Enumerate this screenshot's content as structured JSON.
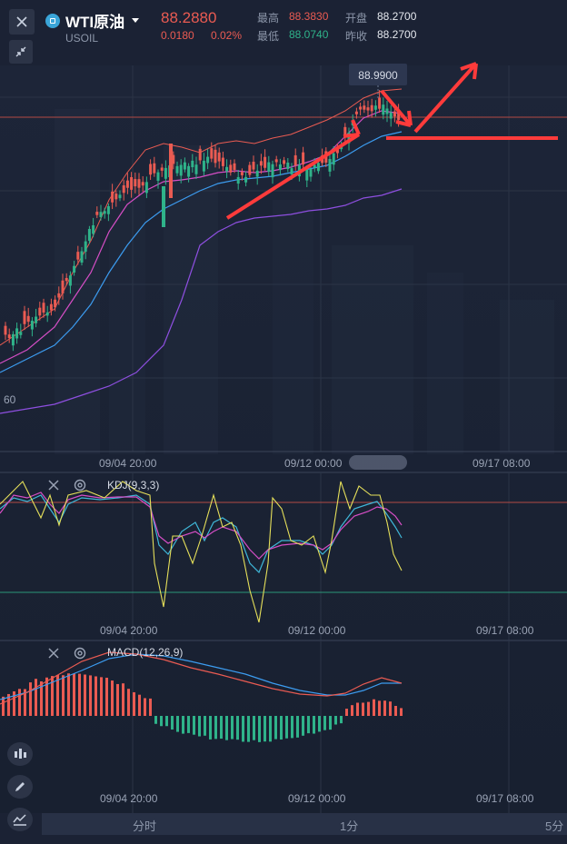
{
  "header": {
    "symbol_name": "WTI原油",
    "symbol_code": "USOIL",
    "price": "88.2880",
    "change": "0.0180",
    "change_pct": "0.02%",
    "high_label": "最高",
    "high_value": "88.3830",
    "open_label": "开盘",
    "open_value": "88.2700",
    "low_label": "最低",
    "low_value": "88.0740",
    "prev_close_label": "昨收",
    "prev_close_value": "88.2700"
  },
  "main_chart": {
    "price_tag": "88.9900",
    "left_axis_fragment": "60",
    "x_labels": [
      "09/04 20:00",
      "09/12 00:00",
      "09/17 08:00"
    ]
  },
  "kdj_panel": {
    "title": "KDJ(9,3,3)",
    "x_labels": [
      "09/04 20:00",
      "09/12 00:00",
      "09/17 08:00"
    ]
  },
  "macd_panel": {
    "title": "MACD(12,26,9)",
    "x_labels": [
      "09/04 20:00",
      "09/12 00:00",
      "09/17 08:00"
    ]
  },
  "timeframes": [
    "分时",
    "1分",
    "5分"
  ],
  "colors": {
    "up": "#ea5b52",
    "down": "#2fb38a",
    "background": "#1b2234",
    "ma_red": "#ea5b52",
    "ma_pink": "#d64ec6",
    "ma_blue": "#3c9cf0",
    "boll_purple": "#8e4fe0",
    "kdj_yellow": "#e6e05a",
    "kdj_cyan": "#3fb7d8",
    "arrow": "#ff3b3b"
  }
}
